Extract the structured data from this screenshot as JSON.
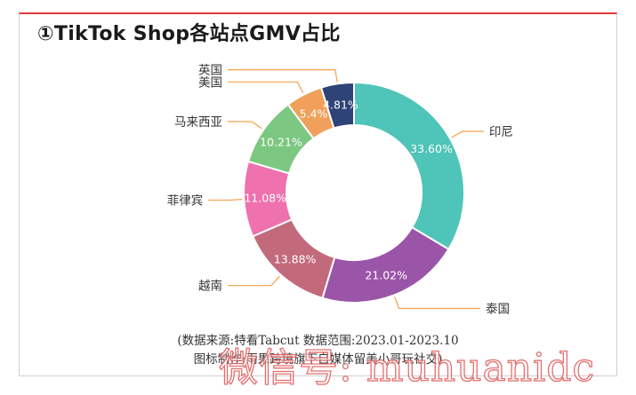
{
  "title": "①TikTok Shop各站点GMV占比",
  "source_line1": "(数据来源:特看Tabcut   数据范围:2023.01-2023.10",
  "source_line2": "图标制作:雨果跨境旗下自媒体留美小哥玩社交)",
  "watermark": "微信号: muhuanidc",
  "chart_data": {
    "type": "pie",
    "donut": true,
    "start": "top, clockwise",
    "slices": [
      {
        "label": "印尼",
        "value": 33.6,
        "value_label": "33.60%",
        "color": "#4fc4b8"
      },
      {
        "label": "泰国",
        "value": 21.02,
        "value_label": "21.02%",
        "color": "#9a55a8"
      },
      {
        "label": "越南",
        "value": 13.88,
        "value_label": "13.88%",
        "color": "#c26a7c"
      },
      {
        "label": "菲律宾",
        "value": 11.08,
        "value_label": "11.08%",
        "color": "#ef71ae"
      },
      {
        "label": "马来西亚",
        "value": 10.21,
        "value_label": "10.21%",
        "color": "#7cc882"
      },
      {
        "label": "美国",
        "value": 5.4,
        "value_label": "5.4%",
        "color": "#f0a05a"
      },
      {
        "label": "英国",
        "value": 4.81,
        "value_label": "4.81%",
        "color": "#2e4378"
      }
    ],
    "label_line_color": "#f5a04a"
  }
}
